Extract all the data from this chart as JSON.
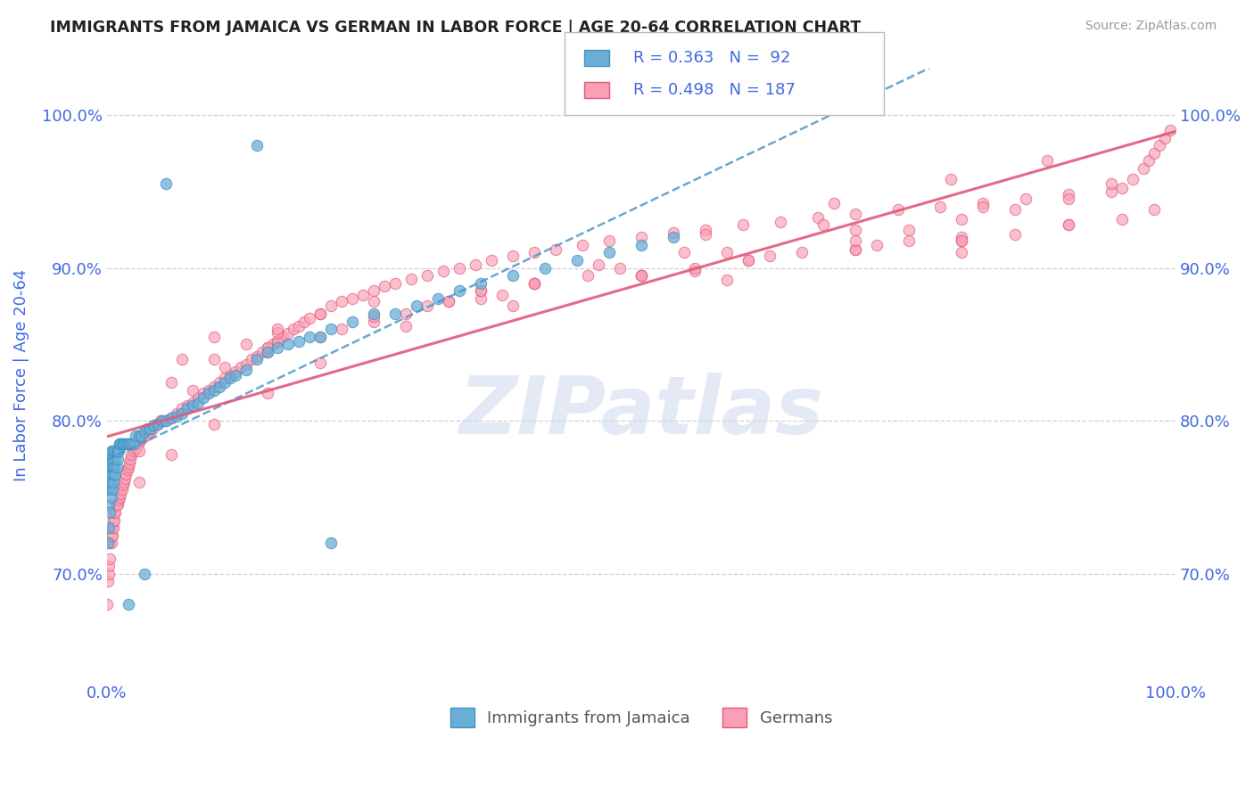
{
  "title": "IMMIGRANTS FROM JAMAICA VS GERMAN IN LABOR FORCE | AGE 20-64 CORRELATION CHART",
  "source_text": "Source: ZipAtlas.com",
  "ylabel": "In Labor Force | Age 20-64",
  "xlim": [
    0.0,
    1.0
  ],
  "ylim": [
    0.63,
    1.03
  ],
  "yticks": [
    0.7,
    0.8,
    0.9,
    1.0
  ],
  "ytick_labels": [
    "70.0%",
    "80.0%",
    "90.0%",
    "100.0%"
  ],
  "xtick_labels": [
    "0.0%",
    "100.0%"
  ],
  "legend_r1": "R = 0.363",
  "legend_n1": "N =  92",
  "legend_r2": "R = 0.498",
  "legend_n2": "N = 187",
  "color_jamaica": "#6baed6",
  "color_german": "#fa9fb5",
  "color_jamaica_line": "#4292c6",
  "color_german_line": "#e05a7a",
  "color_axis_labels": "#4169e1",
  "background_color": "#ffffff",
  "watermark_text": "ZIPatlas",
  "jamaica_x": [
    0.0,
    0.001,
    0.001,
    0.002,
    0.002,
    0.002,
    0.003,
    0.003,
    0.003,
    0.003,
    0.004,
    0.004,
    0.004,
    0.004,
    0.005,
    0.005,
    0.005,
    0.006,
    0.006,
    0.006,
    0.007,
    0.007,
    0.007,
    0.008,
    0.008,
    0.009,
    0.009,
    0.01,
    0.01,
    0.011,
    0.012,
    0.012,
    0.013,
    0.014,
    0.015,
    0.016,
    0.018,
    0.019,
    0.02,
    0.022,
    0.023,
    0.025,
    0.027,
    0.03,
    0.032,
    0.035,
    0.038,
    0.04,
    0.044,
    0.048,
    0.052,
    0.055,
    0.06,
    0.065,
    0.07,
    0.075,
    0.08,
    0.085,
    0.09,
    0.095,
    0.1,
    0.105,
    0.11,
    0.115,
    0.12,
    0.13,
    0.14,
    0.15,
    0.16,
    0.17,
    0.18,
    0.19,
    0.2,
    0.21,
    0.23,
    0.25,
    0.27,
    0.29,
    0.31,
    0.33,
    0.35,
    0.38,
    0.41,
    0.44,
    0.47,
    0.5,
    0.53,
    0.02,
    0.035,
    0.055,
    0.14,
    0.21
  ],
  "jamaica_y": [
    0.755,
    0.72,
    0.76,
    0.73,
    0.745,
    0.77,
    0.74,
    0.755,
    0.76,
    0.775,
    0.75,
    0.76,
    0.77,
    0.78,
    0.755,
    0.765,
    0.775,
    0.76,
    0.77,
    0.78,
    0.765,
    0.77,
    0.78,
    0.765,
    0.775,
    0.77,
    0.78,
    0.775,
    0.78,
    0.78,
    0.785,
    0.785,
    0.785,
    0.785,
    0.785,
    0.785,
    0.785,
    0.785,
    0.785,
    0.785,
    0.785,
    0.785,
    0.79,
    0.79,
    0.79,
    0.793,
    0.795,
    0.795,
    0.797,
    0.798,
    0.8,
    0.8,
    0.802,
    0.803,
    0.805,
    0.808,
    0.81,
    0.812,
    0.815,
    0.818,
    0.82,
    0.822,
    0.825,
    0.828,
    0.83,
    0.833,
    0.84,
    0.845,
    0.848,
    0.85,
    0.852,
    0.855,
    0.855,
    0.86,
    0.865,
    0.87,
    0.87,
    0.875,
    0.88,
    0.885,
    0.89,
    0.895,
    0.9,
    0.905,
    0.91,
    0.915,
    0.92,
    0.68,
    0.7,
    0.955,
    0.98,
    0.72
  ],
  "german_x": [
    0.0,
    0.001,
    0.002,
    0.002,
    0.003,
    0.003,
    0.004,
    0.004,
    0.005,
    0.005,
    0.006,
    0.006,
    0.007,
    0.007,
    0.008,
    0.009,
    0.01,
    0.011,
    0.012,
    0.013,
    0.014,
    0.015,
    0.016,
    0.017,
    0.018,
    0.019,
    0.02,
    0.021,
    0.022,
    0.023,
    0.025,
    0.027,
    0.029,
    0.031,
    0.034,
    0.037,
    0.04,
    0.043,
    0.047,
    0.051,
    0.055,
    0.06,
    0.065,
    0.07,
    0.075,
    0.08,
    0.085,
    0.09,
    0.095,
    0.1,
    0.105,
    0.11,
    0.115,
    0.12,
    0.125,
    0.13,
    0.135,
    0.14,
    0.145,
    0.15,
    0.155,
    0.16,
    0.165,
    0.17,
    0.175,
    0.18,
    0.185,
    0.19,
    0.2,
    0.21,
    0.22,
    0.23,
    0.24,
    0.25,
    0.26,
    0.27,
    0.285,
    0.3,
    0.315,
    0.33,
    0.345,
    0.36,
    0.38,
    0.4,
    0.42,
    0.445,
    0.47,
    0.5,
    0.53,
    0.56,
    0.595,
    0.63,
    0.665,
    0.7,
    0.74,
    0.78,
    0.82,
    0.86,
    0.9,
    0.94,
    0.03,
    0.05,
    0.08,
    0.11,
    0.15,
    0.2,
    0.25,
    0.32,
    0.4,
    0.48,
    0.58,
    0.7,
    0.82,
    0.94,
    0.06,
    0.1,
    0.16,
    0.25,
    0.35,
    0.5,
    0.7,
    0.9,
    0.13,
    0.22,
    0.38,
    0.58,
    0.8,
    0.1,
    0.2,
    0.35,
    0.6,
    0.8,
    0.07,
    0.16,
    0.3,
    0.5,
    0.75,
    0.16,
    0.32,
    0.55,
    0.8,
    0.25,
    0.45,
    0.72,
    0.35,
    0.62,
    0.4,
    0.7,
    0.5,
    0.8,
    0.55,
    0.85,
    0.6,
    0.9,
    0.65,
    0.95,
    0.7,
    0.98,
    0.75,
    0.8,
    0.85,
    0.9,
    0.95,
    0.96,
    0.97,
    0.975,
    0.98,
    0.985,
    0.99,
    0.995,
    0.03,
    0.06,
    0.1,
    0.15,
    0.2,
    0.28,
    0.37,
    0.46,
    0.56,
    0.68,
    0.79,
    0.88,
    0.15,
    0.28,
    0.4,
    0.54,
    0.67
  ],
  "german_y": [
    0.68,
    0.695,
    0.7,
    0.705,
    0.71,
    0.72,
    0.72,
    0.725,
    0.725,
    0.73,
    0.73,
    0.735,
    0.735,
    0.74,
    0.74,
    0.745,
    0.745,
    0.748,
    0.75,
    0.752,
    0.755,
    0.758,
    0.76,
    0.762,
    0.765,
    0.768,
    0.77,
    0.772,
    0.775,
    0.778,
    0.78,
    0.782,
    0.785,
    0.787,
    0.789,
    0.791,
    0.793,
    0.795,
    0.798,
    0.8,
    0.8,
    0.802,
    0.805,
    0.808,
    0.81,
    0.812,
    0.815,
    0.818,
    0.82,
    0.822,
    0.825,
    0.828,
    0.83,
    0.832,
    0.835,
    0.837,
    0.84,
    0.842,
    0.845,
    0.848,
    0.85,
    0.852,
    0.855,
    0.857,
    0.86,
    0.862,
    0.865,
    0.867,
    0.87,
    0.875,
    0.878,
    0.88,
    0.882,
    0.885,
    0.888,
    0.89,
    0.893,
    0.895,
    0.898,
    0.9,
    0.902,
    0.905,
    0.908,
    0.91,
    0.912,
    0.915,
    0.918,
    0.92,
    0.923,
    0.925,
    0.928,
    0.93,
    0.933,
    0.935,
    0.938,
    0.94,
    0.942,
    0.945,
    0.948,
    0.95,
    0.78,
    0.8,
    0.82,
    0.835,
    0.845,
    0.855,
    0.865,
    0.878,
    0.89,
    0.9,
    0.91,
    0.925,
    0.94,
    0.955,
    0.825,
    0.84,
    0.852,
    0.868,
    0.88,
    0.895,
    0.912,
    0.928,
    0.85,
    0.86,
    0.875,
    0.892,
    0.91,
    0.855,
    0.87,
    0.885,
    0.905,
    0.92,
    0.84,
    0.858,
    0.875,
    0.895,
    0.918,
    0.86,
    0.878,
    0.898,
    0.918,
    0.878,
    0.895,
    0.915,
    0.885,
    0.908,
    0.89,
    0.912,
    0.895,
    0.918,
    0.9,
    0.922,
    0.905,
    0.928,
    0.91,
    0.932,
    0.918,
    0.938,
    0.925,
    0.932,
    0.938,
    0.945,
    0.952,
    0.958,
    0.965,
    0.97,
    0.975,
    0.98,
    0.985,
    0.99,
    0.76,
    0.778,
    0.798,
    0.818,
    0.838,
    0.862,
    0.882,
    0.902,
    0.922,
    0.942,
    0.958,
    0.97,
    0.848,
    0.87,
    0.89,
    0.91,
    0.928
  ]
}
